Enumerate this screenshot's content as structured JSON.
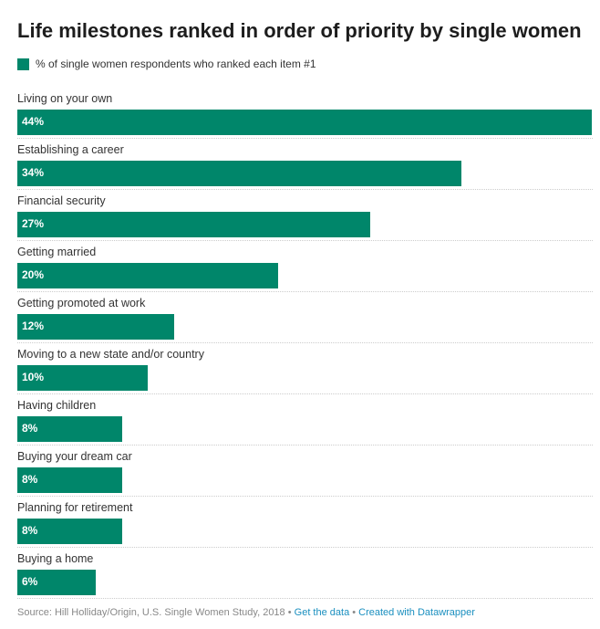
{
  "title": "Life milestones ranked in order of priority by single women",
  "legend": {
    "label": "% of single women respondents who ranked each item #1",
    "color": "#00866a"
  },
  "footer": {
    "source": "Source: Hill Holliday/Origin, U.S. Single Women Study, 2018",
    "sep": " • ",
    "get_data": "Get the data",
    "created": "Created with Datawrapper",
    "link_color": "#1a8fbf"
  },
  "chart_data": {
    "type": "bar",
    "orientation": "horizontal",
    "categories": [
      "Living on your own",
      "Establishing a career",
      "Financial security",
      "Getting married",
      "Getting promoted at work",
      "Moving to a new state and/or country",
      "Having children",
      "Buying your dream car",
      "Planning for retirement",
      "Buying a home"
    ],
    "values": [
      44,
      34,
      27,
      20,
      12,
      10,
      8,
      8,
      8,
      6
    ],
    "value_labels": [
      "44%",
      "34%",
      "27%",
      "20%",
      "12%",
      "10%",
      "8%",
      "8%",
      "8%",
      "6%"
    ],
    "unit": "%",
    "xlim": [
      0,
      44
    ],
    "grid": false,
    "legend_position": "top-left",
    "bar_color": "#00866a"
  }
}
